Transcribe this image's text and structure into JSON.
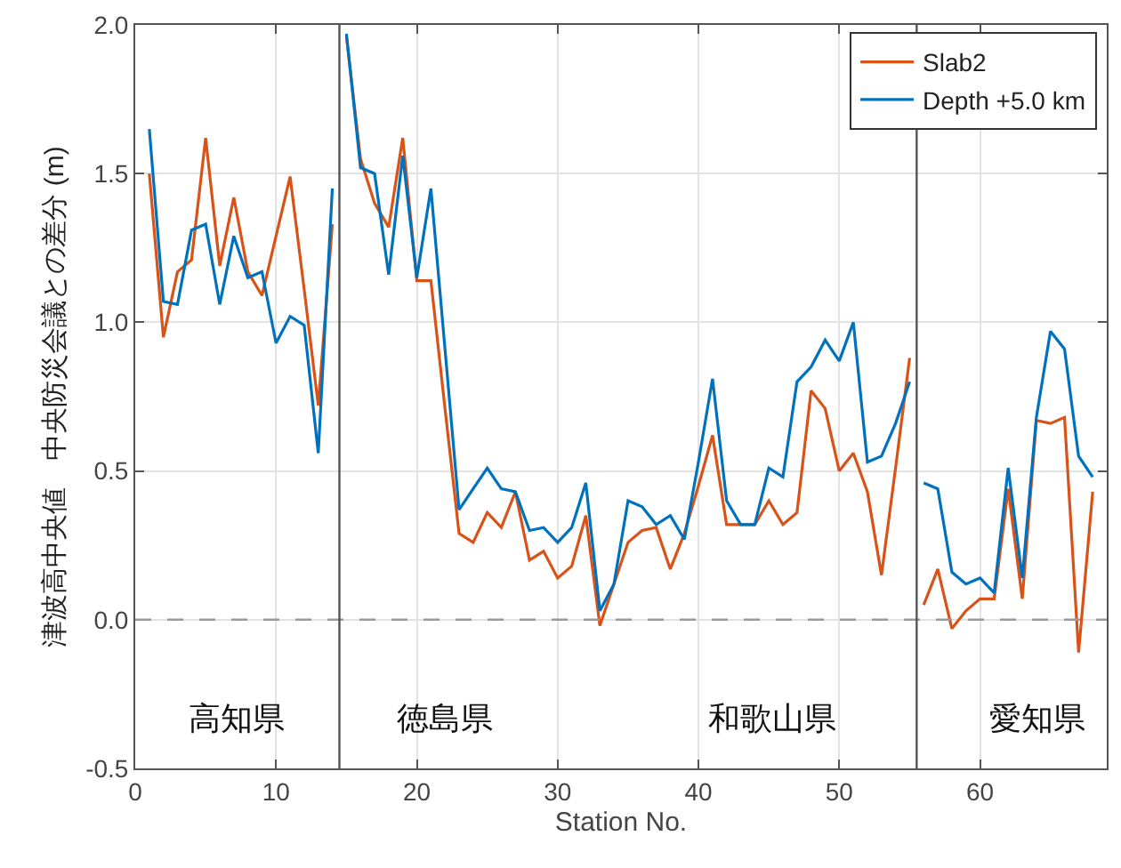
{
  "chart_data": {
    "type": "line",
    "xlabel": "Station No.",
    "ylabel": "津波高中央値　中央防災会議との差分 (m)",
    "x": [
      1,
      2,
      3,
      4,
      5,
      6,
      7,
      8,
      9,
      10,
      11,
      12,
      13,
      14,
      14.5,
      15,
      16,
      17,
      18,
      19,
      20,
      21,
      22,
      23,
      24,
      25,
      26,
      27,
      28,
      29,
      30,
      31,
      32,
      33,
      34,
      35,
      36,
      37,
      38,
      39,
      40,
      41,
      42,
      43,
      44,
      45,
      46,
      47,
      48,
      49,
      50,
      51,
      52,
      53,
      54,
      55,
      55.5,
      56,
      57,
      58,
      59,
      60,
      61,
      62,
      63,
      64,
      65,
      66,
      67,
      68
    ],
    "series": [
      {
        "name": "Slab2",
        "color": "#d95319",
        "values": [
          1.5,
          0.95,
          1.17,
          1.21,
          1.62,
          1.19,
          1.42,
          1.17,
          1.09,
          1.29,
          1.49,
          1.11,
          0.72,
          1.33,
          null,
          1.96,
          1.55,
          1.4,
          1.32,
          1.62,
          1.14,
          1.14,
          0.71,
          0.29,
          0.26,
          0.36,
          0.31,
          0.43,
          0.2,
          0.23,
          0.14,
          0.18,
          0.35,
          -0.02,
          0.12,
          0.26,
          0.3,
          0.31,
          0.17,
          0.29,
          0.45,
          0.62,
          0.32,
          0.32,
          0.32,
          0.4,
          0.32,
          0.36,
          0.77,
          0.71,
          0.5,
          0.56,
          0.43,
          0.15,
          0.51,
          0.88,
          null,
          0.05,
          0.17,
          -0.03,
          0.03,
          0.07,
          0.07,
          0.44,
          0.07,
          0.67,
          0.66,
          0.68,
          -0.11,
          0.43
        ]
      },
      {
        "name": "Depth +5.0 km",
        "color": "#0072bd",
        "values": [
          1.65,
          1.07,
          1.06,
          1.31,
          1.33,
          1.06,
          1.29,
          1.15,
          1.17,
          0.93,
          1.02,
          0.99,
          0.56,
          1.45,
          null,
          1.97,
          1.52,
          1.5,
          1.16,
          1.56,
          1.15,
          1.45,
          0.91,
          0.37,
          0.44,
          0.51,
          0.44,
          0.43,
          0.3,
          0.31,
          0.26,
          0.31,
          0.46,
          0.03,
          0.12,
          0.4,
          0.38,
          0.32,
          0.35,
          0.27,
          0.53,
          0.81,
          0.4,
          0.32,
          0.32,
          0.51,
          0.48,
          0.8,
          0.85,
          0.94,
          0.87,
          1.0,
          0.53,
          0.55,
          0.66,
          0.8,
          null,
          0.46,
          0.44,
          0.16,
          0.12,
          0.14,
          0.09,
          0.51,
          0.14,
          0.68,
          0.97,
          0.91,
          0.55,
          0.48
        ]
      }
    ],
    "xlim": [
      0,
      69
    ],
    "xticks": [
      0,
      10,
      20,
      30,
      40,
      50,
      60
    ],
    "ylim": [
      -0.5,
      2.0
    ],
    "yticks": [
      {
        "value": -0.5,
        "label": "-0.5"
      },
      {
        "value": 0,
        "label": "0.0"
      },
      {
        "value": 0.5,
        "label": "0.5"
      },
      {
        "value": 1,
        "label": "1.0"
      },
      {
        "value": 1.5,
        "label": "1.5"
      },
      {
        "value": 2,
        "label": "2.0"
      }
    ],
    "ref_lines": [
      {
        "axis": "y",
        "value": 0,
        "color": "#999999",
        "line_style": "dashed"
      },
      {
        "axis": "x",
        "value": 14.5,
        "color": "#555555",
        "line_style": "solid"
      },
      {
        "axis": "x",
        "value": 55.5,
        "color": "#555555",
        "line_style": "solid"
      }
    ],
    "annotations": [
      "高知県",
      "徳島県",
      "和歌山県",
      "愛知県"
    ],
    "grid": true,
    "legend": "top right"
  }
}
